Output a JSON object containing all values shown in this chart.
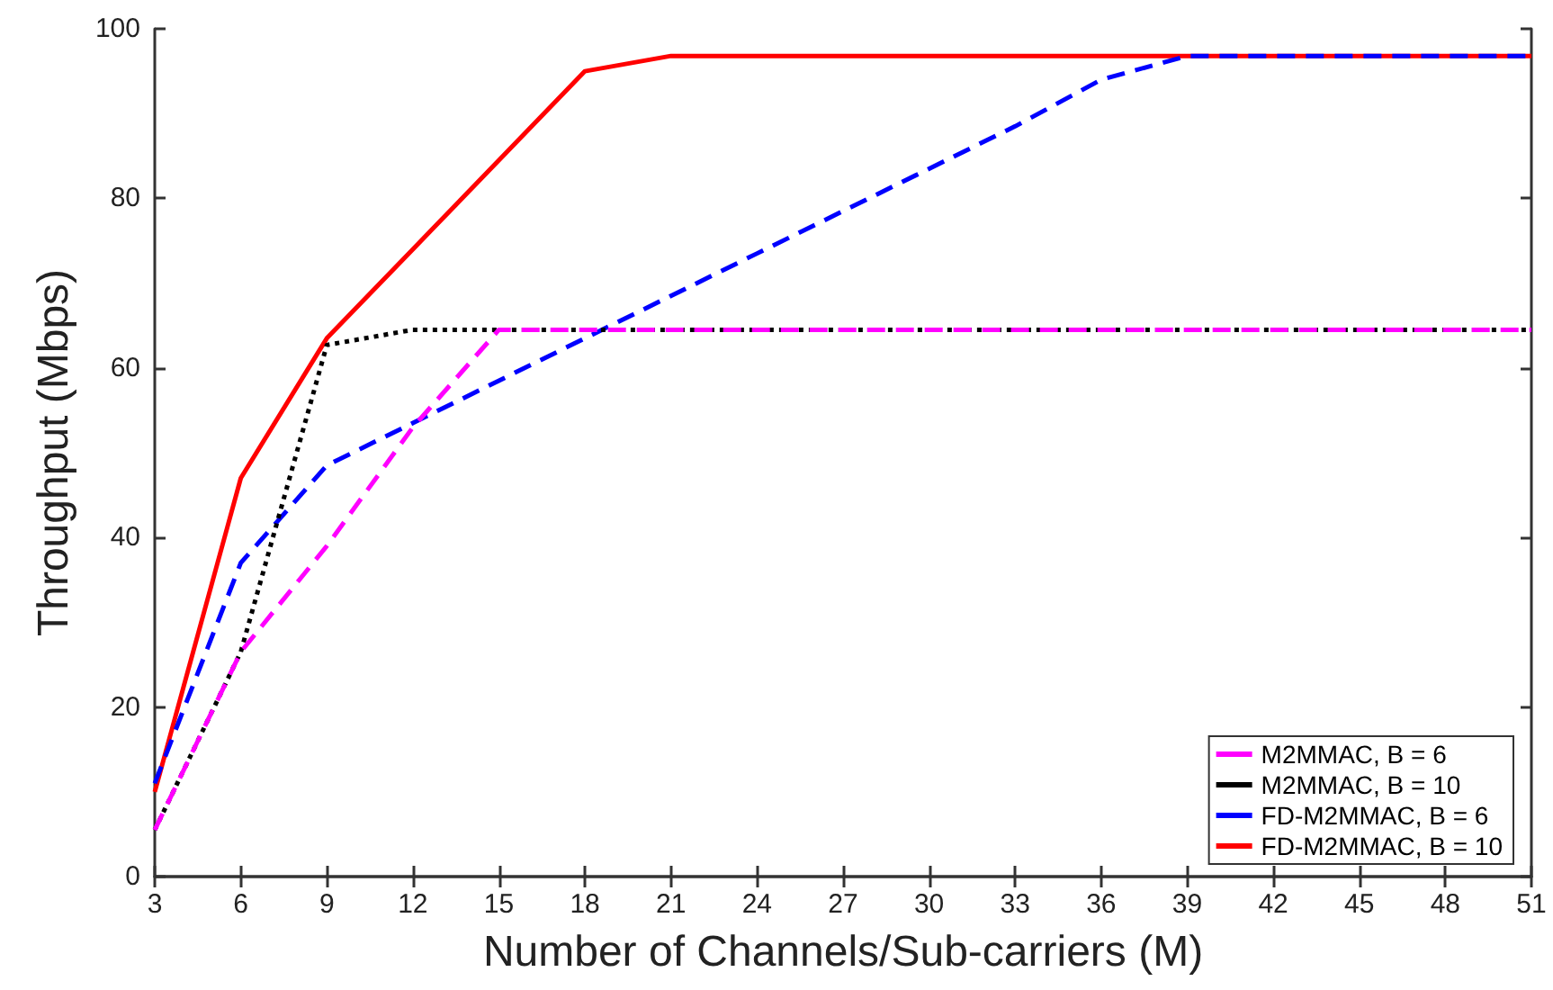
{
  "chart_data": {
    "type": "line",
    "xlabel": "Number of Channels/Sub-carriers (M)",
    "ylabel": "Throughput (Mbps)",
    "x": [
      3,
      6,
      9,
      12,
      15,
      18,
      21,
      24,
      27,
      30,
      33,
      36,
      39,
      42,
      45,
      48,
      51
    ],
    "series": [
      {
        "name": "M2MMAC, B = 6",
        "color": "#ff00ff",
        "line_style": "dashed",
        "values": [
          5.5,
          26.5,
          39,
          53,
          64.5,
          64.5,
          64.5,
          64.5,
          64.5,
          64.5,
          64.5,
          64.5,
          64.5,
          64.5,
          64.5,
          64.5,
          64.5
        ]
      },
      {
        "name": "M2MMAC, B = 10",
        "color": "#000000",
        "line_style": "dotted",
        "values": [
          5.5,
          26.5,
          62.7,
          64.5,
          64.5,
          64.5,
          64.5,
          64.5,
          64.5,
          64.5,
          64.5,
          64.5,
          64.5,
          64.5,
          64.5,
          64.5,
          64.5
        ]
      },
      {
        "name": "FD-M2MMAC, B = 6",
        "color": "#0000ff",
        "line_style": "dashed",
        "values": [
          11,
          37,
          48.5,
          53.5,
          58.5,
          63.5,
          68.5,
          73.5,
          78.5,
          83.5,
          88.5,
          94,
          96.8,
          96.8,
          96.8,
          96.8,
          96.8
        ]
      },
      {
        "name": "FD-M2MMAC, B = 10",
        "color": "#ff0000",
        "line_style": "solid",
        "values": [
          10,
          47,
          63.5,
          74,
          84.5,
          95,
          96.8,
          96.8,
          96.8,
          96.8,
          96.8,
          96.8,
          96.8,
          96.8,
          96.8,
          96.8,
          96.8
        ]
      }
    ],
    "xlim": [
      3,
      51
    ],
    "xticks": [
      3,
      6,
      9,
      12,
      15,
      18,
      21,
      24,
      27,
      30,
      33,
      36,
      39,
      42,
      45,
      48,
      51
    ],
    "ylim": [
      0,
      100
    ],
    "yticks": [
      0,
      20,
      40,
      60,
      80,
      100
    ],
    "grid": false,
    "legend": "bottom right",
    "marker": "none"
  }
}
